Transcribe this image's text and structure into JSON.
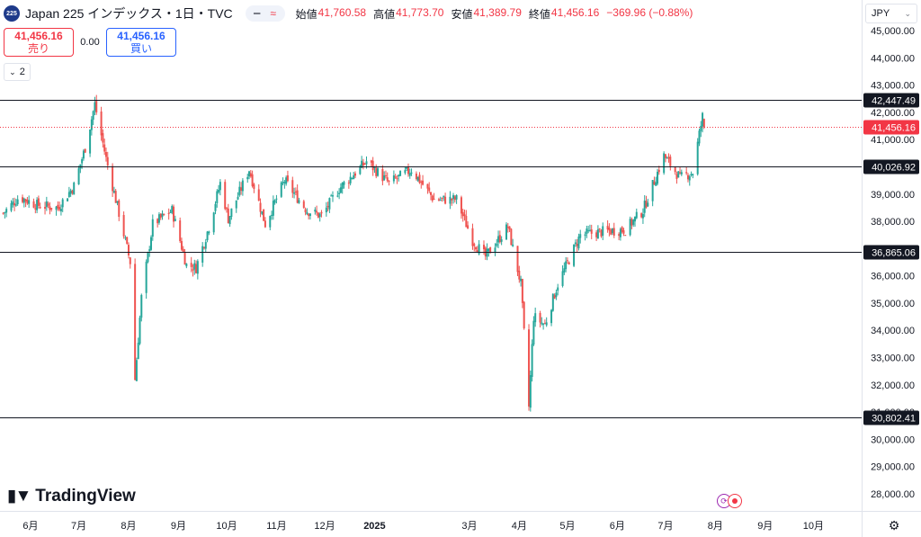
{
  "header": {
    "symbol_badge": "225",
    "title": "Japan 225 インデックス・1日・TVC",
    "ohlc": [
      {
        "label": "始値",
        "value": "41,760.58"
      },
      {
        "label": "高値",
        "value": "41,773.70"
      },
      {
        "label": "安値",
        "value": "41,389.79"
      },
      {
        "label": "終値",
        "value": "41,456.16"
      }
    ],
    "change": "−369.96 (−0.88%)"
  },
  "trade": {
    "sell_price": "41,456.16",
    "sell_label": "売り",
    "spread": "0.00",
    "buy_price": "41,456.16",
    "buy_label": "買い"
  },
  "collapse_label": "2",
  "currency": "JPY",
  "brand": "TradingView",
  "colors": {
    "up": "#26a69a",
    "down": "#ef5350",
    "line": "#131722",
    "price": "#f23645"
  },
  "chart_data": {
    "type": "candlestick",
    "title": "Japan 225",
    "interval": "1日",
    "ylim": [
      27500,
      45300
    ],
    "y_ticks": [
      28000,
      29000,
      30000,
      31000,
      32000,
      33000,
      34000,
      35000,
      36000,
      37000,
      38000,
      39000,
      40000,
      41000,
      42000,
      43000,
      44000,
      45000
    ],
    "y_tick_labels": [
      "28,000.00",
      "29,000.00",
      "30,000.00",
      "31,000.00",
      "32,000.00",
      "33,000.00",
      "34,000.00",
      "35,000.00",
      "36,000.00",
      "37,000.00",
      "38,000.00",
      "39,000.00",
      "40,000.00",
      "41,000.00",
      "42,000.00",
      "43,000.00",
      "44,000.00",
      "45,000.00"
    ],
    "x_labels": [
      "6月",
      "7月",
      "8月",
      "9月",
      "10月",
      "11月",
      "12月",
      "2025",
      "3月",
      "4月",
      "5月",
      "6月",
      "7月",
      "8月",
      "9月",
      "10月"
    ],
    "x_label_dates": [
      "2024-06-01",
      "2024-07-01",
      "2024-08-01",
      "2024-09-01",
      "2024-10-01",
      "2024-11-01",
      "2024-12-01",
      "2025-01-01",
      "2025-03-01",
      "2025-04-01",
      "2025-05-01",
      "2025-06-01",
      "2025-07-01",
      "2025-08-01",
      "2025-09-01",
      "2025-10-01"
    ],
    "horizontal_lines": [
      {
        "value": 42447.49,
        "label": "42,447.49"
      },
      {
        "value": 40026.92,
        "label": "40,026.92"
      },
      {
        "value": 36865.06,
        "label": "36,865.06"
      },
      {
        "value": 30802.41,
        "label": "30,802.41"
      }
    ],
    "last_price": {
      "value": 41456.16,
      "label": "41,456.16"
    },
    "key_points": [
      {
        "date": "2024-05-15",
        "close": 38300
      },
      {
        "date": "2024-05-25",
        "close": 38900
      },
      {
        "date": "2024-06-05",
        "close": 38600
      },
      {
        "date": "2024-06-18",
        "close": 38500
      },
      {
        "date": "2024-06-28",
        "close": 39300
      },
      {
        "date": "2024-07-05",
        "close": 40700
      },
      {
        "date": "2024-07-11",
        "close": 42300
      },
      {
        "date": "2024-07-18",
        "close": 40300
      },
      {
        "date": "2024-07-26",
        "close": 38300
      },
      {
        "date": "2024-08-02",
        "close": 36500
      },
      {
        "date": "2024-08-05",
        "close": 32200
      },
      {
        "date": "2024-08-09",
        "close": 35200
      },
      {
        "date": "2024-08-16",
        "close": 37900
      },
      {
        "date": "2024-08-28",
        "close": 38400
      },
      {
        "date": "2024-09-06",
        "close": 36400
      },
      {
        "date": "2024-09-12",
        "close": 36300
      },
      {
        "date": "2024-09-20",
        "close": 37800
      },
      {
        "date": "2024-09-27",
        "close": 39400
      },
      {
        "date": "2024-10-02",
        "close": 38100
      },
      {
        "date": "2024-10-15",
        "close": 39900
      },
      {
        "date": "2024-10-25",
        "close": 37900
      },
      {
        "date": "2024-11-06",
        "close": 39500
      },
      {
        "date": "2024-11-20",
        "close": 38400
      },
      {
        "date": "2024-11-29",
        "close": 38200
      },
      {
        "date": "2024-12-10",
        "close": 39200
      },
      {
        "date": "2024-12-27",
        "close": 40200
      },
      {
        "date": "2025-01-10",
        "close": 39400
      },
      {
        "date": "2025-01-24",
        "close": 39900
      },
      {
        "date": "2025-02-07",
        "close": 38800
      },
      {
        "date": "2025-02-21",
        "close": 38800
      },
      {
        "date": "2025-03-03",
        "close": 37300
      },
      {
        "date": "2025-03-11",
        "close": 36700
      },
      {
        "date": "2025-03-25",
        "close": 37800
      },
      {
        "date": "2025-04-02",
        "close": 35700
      },
      {
        "date": "2025-04-07",
        "close": 31200
      },
      {
        "date": "2025-04-10",
        "close": 34500
      },
      {
        "date": "2025-04-17",
        "close": 34200
      },
      {
        "date": "2025-04-25",
        "close": 35700
      },
      {
        "date": "2025-05-09",
        "close": 37500
      },
      {
        "date": "2025-05-20",
        "close": 37600
      },
      {
        "date": "2025-06-06",
        "close": 37700
      },
      {
        "date": "2025-06-17",
        "close": 38400
      },
      {
        "date": "2025-06-30",
        "close": 40400
      },
      {
        "date": "2025-07-10",
        "close": 39600
      },
      {
        "date": "2025-07-18",
        "close": 39800
      },
      {
        "date": "2025-07-22",
        "close": 41200
      },
      {
        "date": "2025-07-24",
        "close": 41850
      },
      {
        "date": "2025-07-25",
        "close": 41456
      }
    ]
  }
}
